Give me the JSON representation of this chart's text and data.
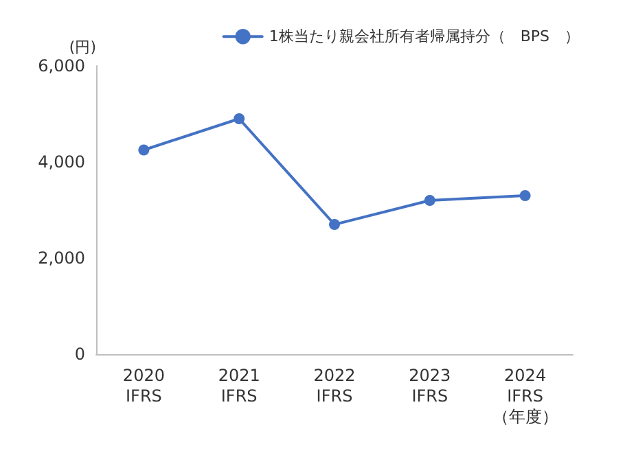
{
  "chart_data": {
    "type": "line",
    "ylabel": "(円)",
    "categories": [
      "2020\nIFRS",
      "2021\nIFRS",
      "2022\nIFRS",
      "2023\nIFRS",
      "2024\nIFRS\n（年度）"
    ],
    "series": [
      {
        "name": "1株当たり親会社所有者帰属持分（　BPS　）",
        "color": "#4472c4",
        "values": [
          4250,
          4900,
          2700,
          3200,
          3300
        ]
      }
    ],
    "ylim": [
      0,
      6000
    ],
    "yticks": [
      0,
      {
        "value": 2000,
        "label": "2,000"
      },
      {
        "value": 4000,
        "label": "4,000"
      },
      {
        "value": 6000,
        "label": "6,000"
      }
    ],
    "grid": false,
    "legend": "top right",
    "marker": "circle",
    "line_style": "solid"
  }
}
